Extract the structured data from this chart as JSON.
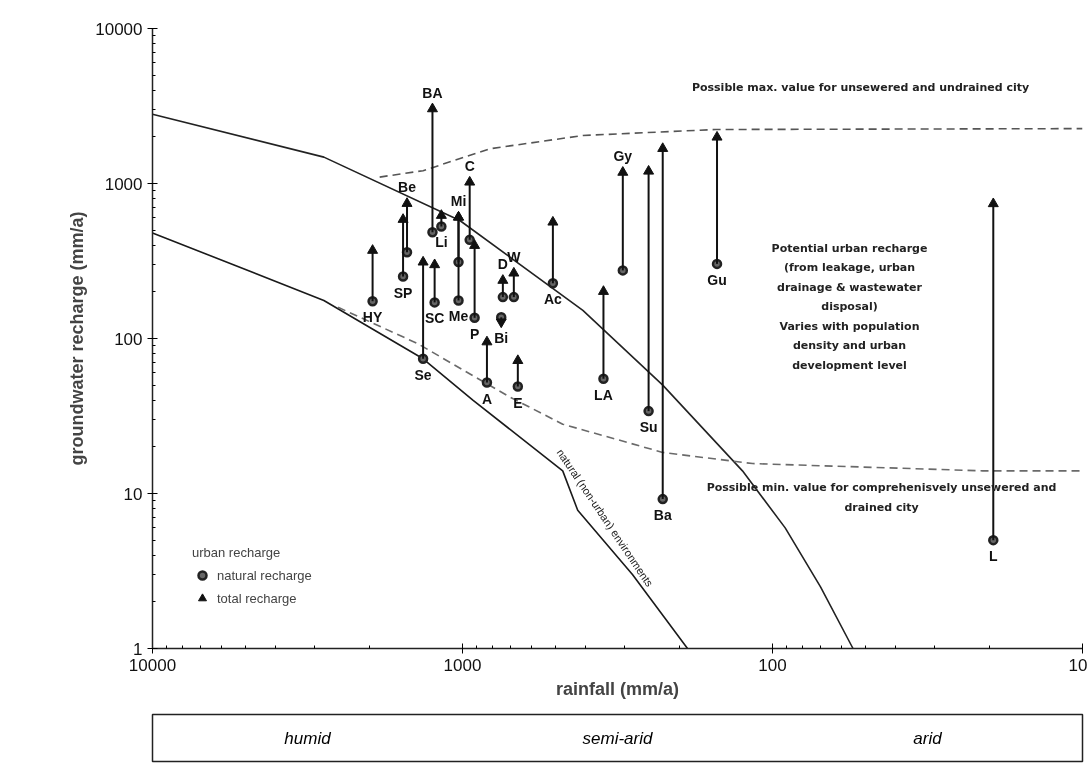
{
  "chart_data": {
    "type": "scatter",
    "xlabel": "rainfall (mm/a)",
    "ylabel": "groundwater recharge (mm/a)",
    "log": "xy",
    "xlim": [
      10000,
      10
    ],
    "ylim": [
      1,
      10000
    ],
    "xticks": [
      10000,
      1000,
      100,
      10
    ],
    "yticks": [
      1,
      10,
      100,
      1000,
      10000
    ],
    "legend": "bottom left",
    "legend_title": "urban recharge",
    "x": [
      1250,
      1510,
      1555,
      1950,
      1340,
      1230,
      1170,
      1030,
      1030,
      948,
      914,
      741,
      683,
      750,
      834,
      663,
      511,
      304,
      351,
      251,
      226,
      151,
      19.4
    ],
    "series": [
      {
        "type": "line",
        "x": [
          10000,
          2800,
          1020,
          409,
          226,
          125,
          91,
          70,
          55
        ],
        "values": [
          2800,
          1480,
          577,
          152,
          50,
          14,
          6,
          2.5,
          1
        ],
        "color": "#222222"
      },
      {
        "type": "line",
        "name": "natural (non-urban) environments",
        "x": [
          10000,
          2800,
          1340,
          926,
          475,
          425,
          283,
          188
        ],
        "values": [
          480,
          176,
          74,
          40,
          14,
          7.8,
          3,
          1
        ],
        "color": "#1a1a1a"
      },
      {
        "type": "line",
        "line_style": "dashed",
        "x": [
          1850,
          1340,
          817,
          409,
          153,
          10
        ],
        "values": [
          1100,
          1210,
          1675,
          2040,
          2230,
          2260
        ],
        "color": "#555555"
      },
      {
        "type": "line",
        "line_style": "dashed",
        "x": [
          2520,
          1400,
          705,
          475,
          226,
          116,
          21,
          10
        ],
        "values": [
          159,
          93,
          42,
          28,
          18.4,
          15.6,
          14,
          14
        ],
        "color": "#6a6a6a"
      },
      {
        "name": "natural recharge",
        "marker": "circle",
        "color": "#222222",
        "values": [
          485,
          360,
          251,
          174,
          74,
          171,
          528,
          311,
          176,
          433,
          136,
          185,
          185,
          137,
          52,
          49,
          227,
          275,
          55,
          34,
          9.2,
          303,
          5
        ]
      },
      {
        "name": "total recharge",
        "marker": "triangle",
        "color": "#111111",
        "values": [
          3030,
          743,
          586,
          370,
          311,
          299,
          622,
          606,
          606,
          1020,
          398,
          237,
          264,
          128,
          95,
          72,
          563,
          1180,
          201,
          1200,
          1680,
          1990,
          740
        ]
      }
    ],
    "annotations": [
      {
        "text": "BA",
        "x": 1250,
        "y": 3030
      },
      {
        "text": "Be",
        "x": 1510,
        "y": 743
      },
      {
        "text": "SP",
        "x": 1555,
        "y": 251
      },
      {
        "text": "HY",
        "x": 1950,
        "y": 174
      },
      {
        "text": "Se",
        "x": 1340,
        "y": 74
      },
      {
        "text": "SC",
        "x": 1230,
        "y": 171
      },
      {
        "text": "Li",
        "x": 1170,
        "y": 528
      },
      {
        "text": "Mi",
        "x": 1030,
        "y": 606
      },
      {
        "text": "Me",
        "x": 1030,
        "y": 176
      },
      {
        "text": "C",
        "x": 948,
        "y": 1020
      },
      {
        "text": "P",
        "x": 914,
        "y": 136
      },
      {
        "text": "D",
        "x": 741,
        "y": 237
      },
      {
        "text": "W",
        "x": 683,
        "y": 264
      },
      {
        "text": "Bi",
        "x": 750,
        "y": 128
      },
      {
        "text": "A",
        "x": 834,
        "y": 52
      },
      {
        "text": "E",
        "x": 663,
        "y": 49
      },
      {
        "text": "Ac",
        "x": 511,
        "y": 227
      },
      {
        "text": "Gy",
        "x": 304,
        "y": 1180
      },
      {
        "text": "LA",
        "x": 351,
        "y": 55
      },
      {
        "text": "Su",
        "x": 251,
        "y": 34
      },
      {
        "text": "Ba",
        "x": 226,
        "y": 9.2
      },
      {
        "text": "Gu",
        "x": 151,
        "y": 303
      },
      {
        "text": "L",
        "x": 19.4,
        "y": 5
      },
      "Possible max. value for unsewered and undrained city",
      "Potential urban recharge\n(from leakage, urban\ndrainage & wastewater\ndisposal)\nVaries with population\ndensity and urban\ndevelopment level",
      "Possible min. value for comprehenisvely unsewered and\ndrained city",
      "humid",
      "semi-arid",
      "arid"
    ]
  }
}
